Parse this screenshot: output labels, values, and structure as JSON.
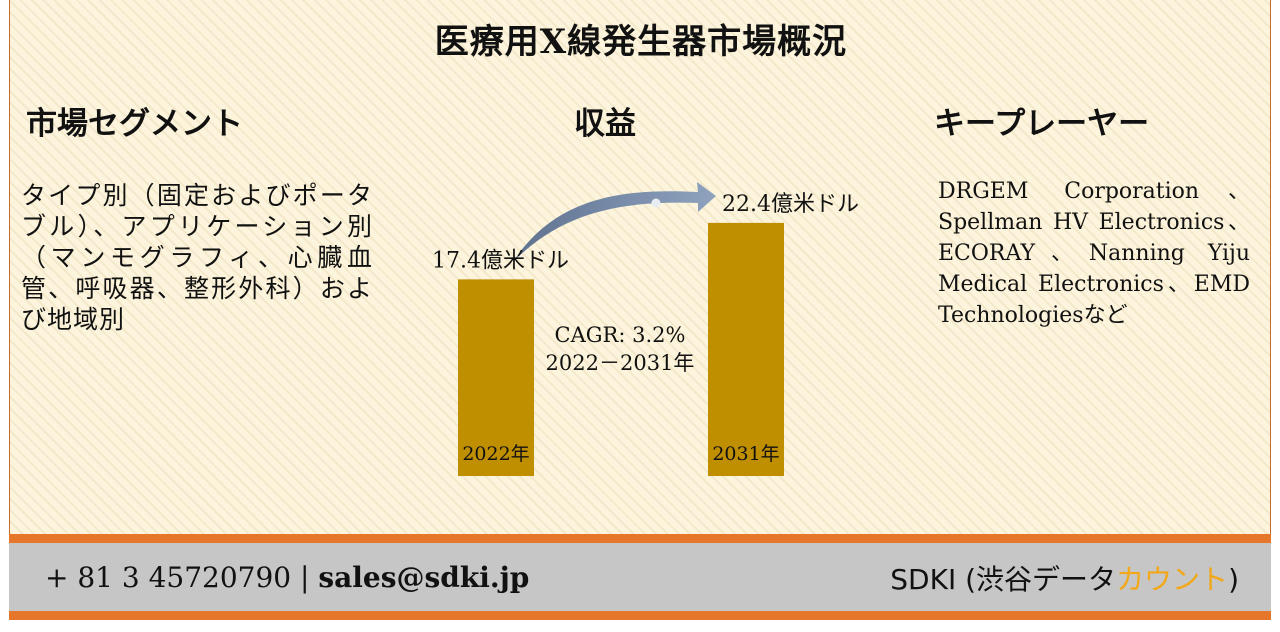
{
  "title": "医療用X線発生器市場概況",
  "segments": {
    "heading": "市場セグメント",
    "text": "タイプ別（固定およびポータブル）、アプリケーション別（マンモグラフィ、心臓血管、呼吸器、整形外科）および地域別"
  },
  "revenue": {
    "heading": "収益"
  },
  "key_players": {
    "heading": "キープレーヤー",
    "text": "DRGEM Corporation、Spellman HV Electronics、ECORAY、Nanning Yiju Medical Electronics、EMD Technologiesなど"
  },
  "chart_data": {
    "type": "bar",
    "categories": [
      "2022年",
      "2031年"
    ],
    "values": [
      17.4,
      22.4
    ],
    "data_labels": [
      "17.4億米ドル",
      "22.4億米ドル"
    ],
    "annotations": [
      "CAGR: 3.2%",
      "2022－2031年"
    ],
    "ylim": [
      0,
      30
    ],
    "bar_color": "#bf8f00",
    "arrow_color": "#7f93b2",
    "grid": false
  },
  "footer": {
    "phone": "+ 81 3 45720790",
    "separator": "|",
    "email": "sales@sdki.jp",
    "brand_prefix": "SDKI (渋谷データ",
    "brand_accent": "カウント",
    "brand_suffix": ")",
    "accent_color": "#f2a818",
    "bar_color": "#e6762a"
  }
}
